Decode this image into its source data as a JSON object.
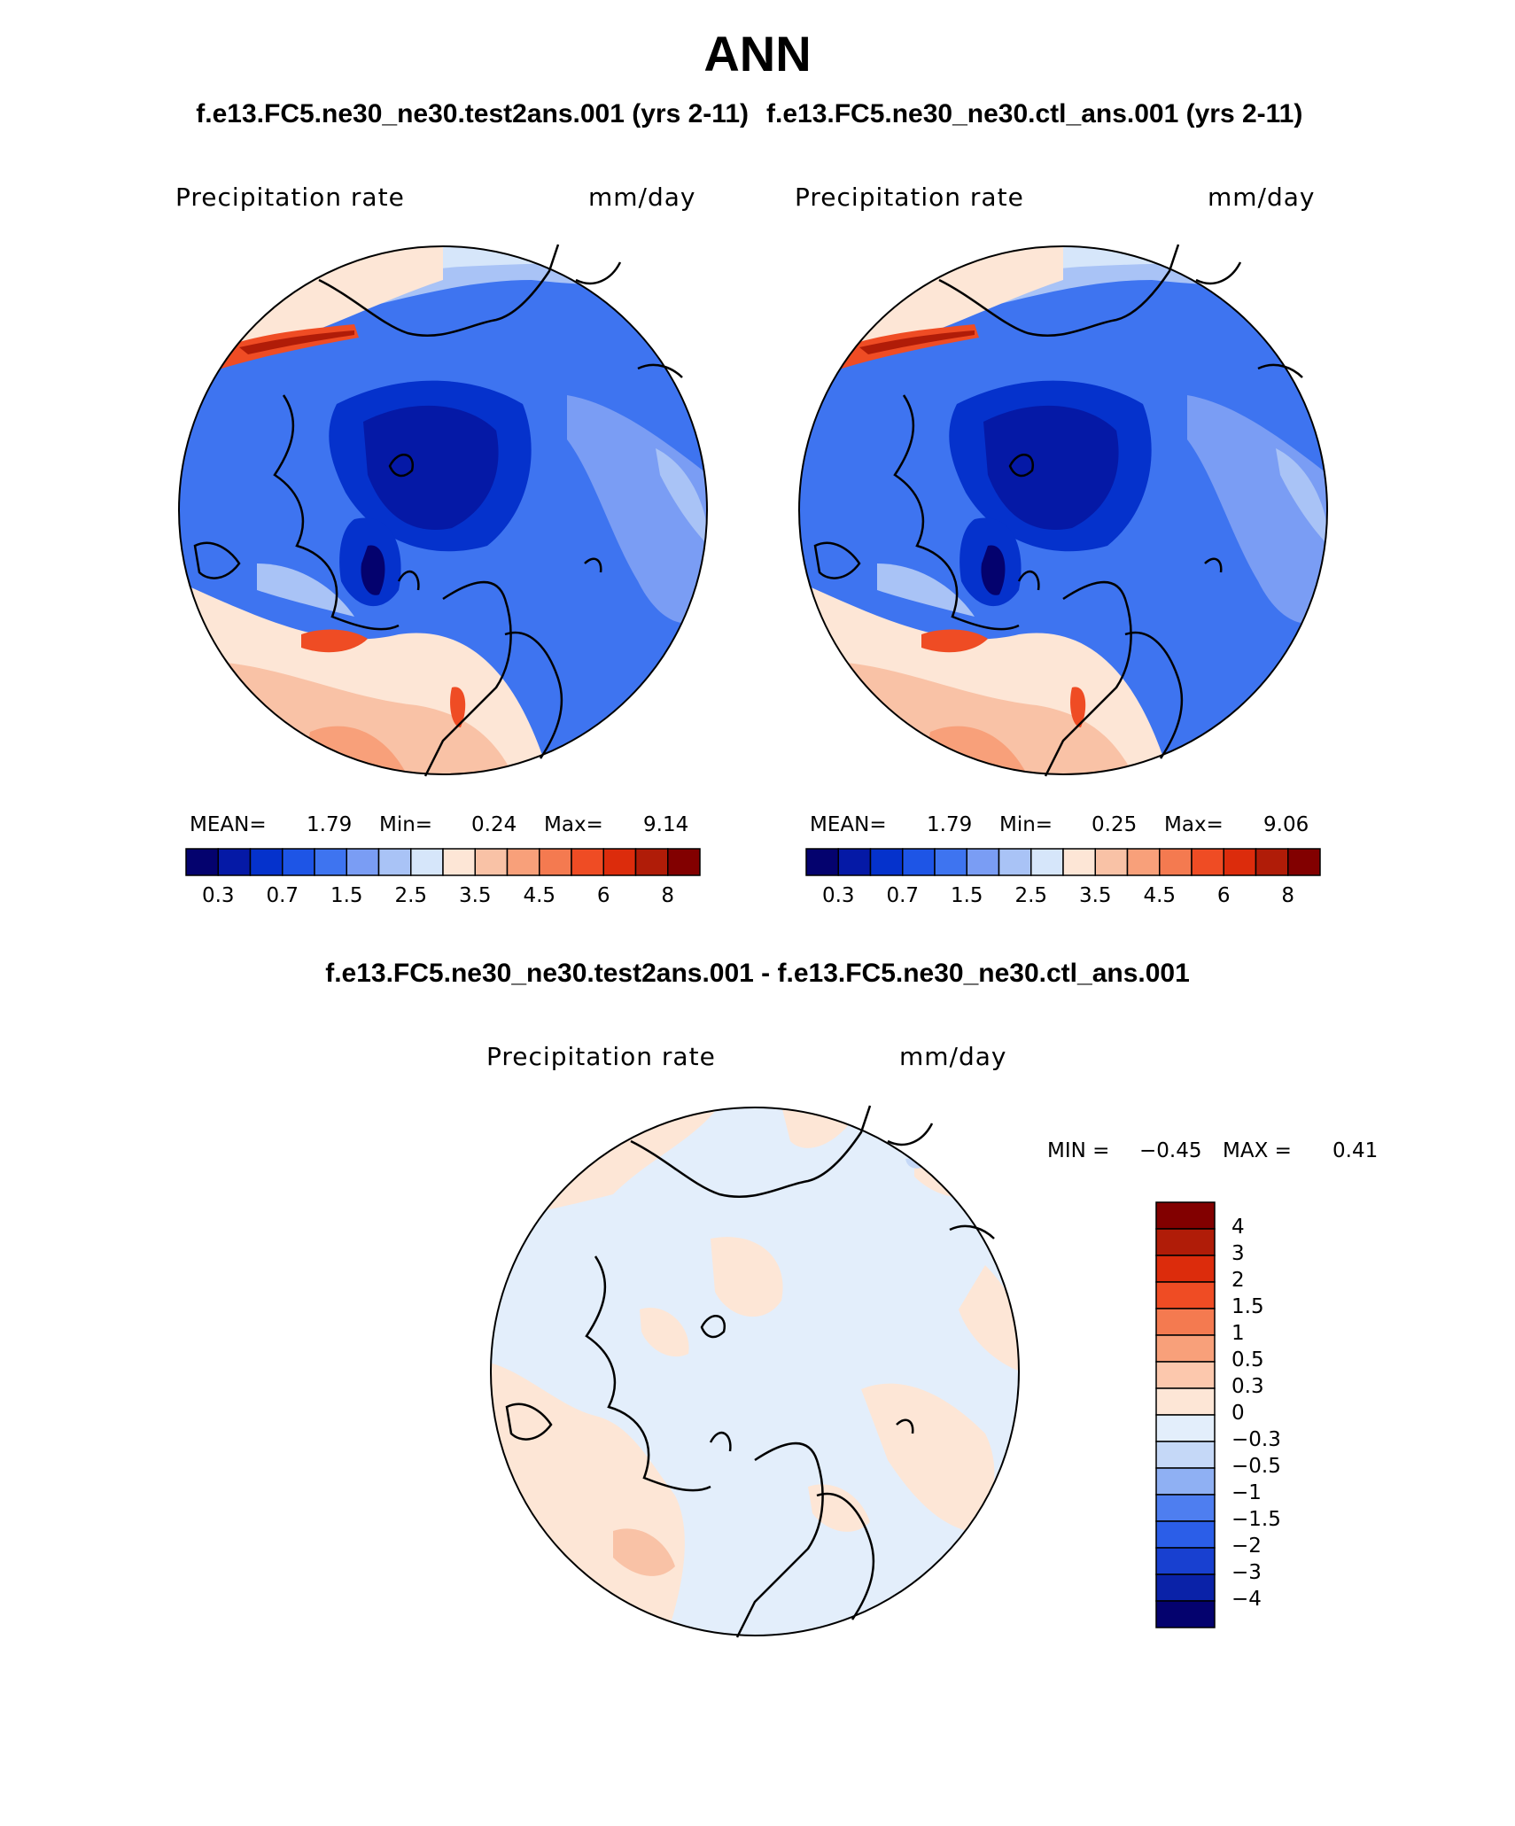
{
  "header": {
    "title": "ANN",
    "case_test": "f.e13.FC5.ne30_ne30.test2ans.001 (yrs 2-11)",
    "case_ctl": "f.e13.FC5.ne30_ne30.ctl_ans.001 (yrs 2-11)",
    "diff_title": "f.e13.FC5.ne30_ne30.test2ans.001 - f.e13.FC5.ne30_ne30.ctl_ans.001"
  },
  "panels": {
    "test": {
      "variable": "Precipitation rate",
      "units": "mm/day",
      "mean_label": "MEAN=",
      "mean": "1.79",
      "min_label": "Min=",
      "min": "0.24",
      "max_label": "Max=",
      "max": "9.14"
    },
    "ctl": {
      "variable": "Precipitation rate",
      "units": "mm/day",
      "mean_label": "MEAN=",
      "mean": "1.79",
      "min_label": "Min=",
      "min": "0.25",
      "max_label": "Max=",
      "max": "9.06"
    },
    "diff": {
      "variable": "Precipitation rate",
      "units": "mm/day",
      "min_label": "MIN =",
      "min": "−0.45",
      "max_label": "MAX =",
      "max": "0.41"
    }
  },
  "colorbar_abs": {
    "colors": [
      "#04026e",
      "#0519a6",
      "#0532cc",
      "#1e55e6",
      "#3e74f0",
      "#7a9df4",
      "#a9c3f6",
      "#d6e6fa",
      "#fde6d6",
      "#f9c2a6",
      "#f8a07a",
      "#f47a50",
      "#ef4c24",
      "#dc2c0c",
      "#b01c08",
      "#820000"
    ],
    "tick_labels": [
      "0.3",
      "0.7",
      "1.5",
      "2.5",
      "3.5",
      "4.5",
      "6",
      "8"
    ],
    "tick_positions": [
      1,
      3,
      5,
      7,
      9,
      11,
      13,
      15
    ]
  },
  "colorbar_diff": {
    "colors_top_to_bottom": [
      "#820000",
      "#b01c08",
      "#dc2c0c",
      "#ef4c24",
      "#f47a50",
      "#f8a07a",
      "#fcc8ad",
      "#fde6d6",
      "#e3eefb",
      "#c5d8f7",
      "#8fb0f3",
      "#4e7ef0",
      "#2b5ee8",
      "#1840d0",
      "#0a22a8",
      "#04026e"
    ],
    "tick_labels": [
      "4",
      "3",
      "2",
      "1.5",
      "1",
      "0.5",
      "0.3",
      "0",
      "−0.3",
      "−0.5",
      "−1",
      "−1.5",
      "−2",
      "−3",
      "−4"
    ]
  }
}
